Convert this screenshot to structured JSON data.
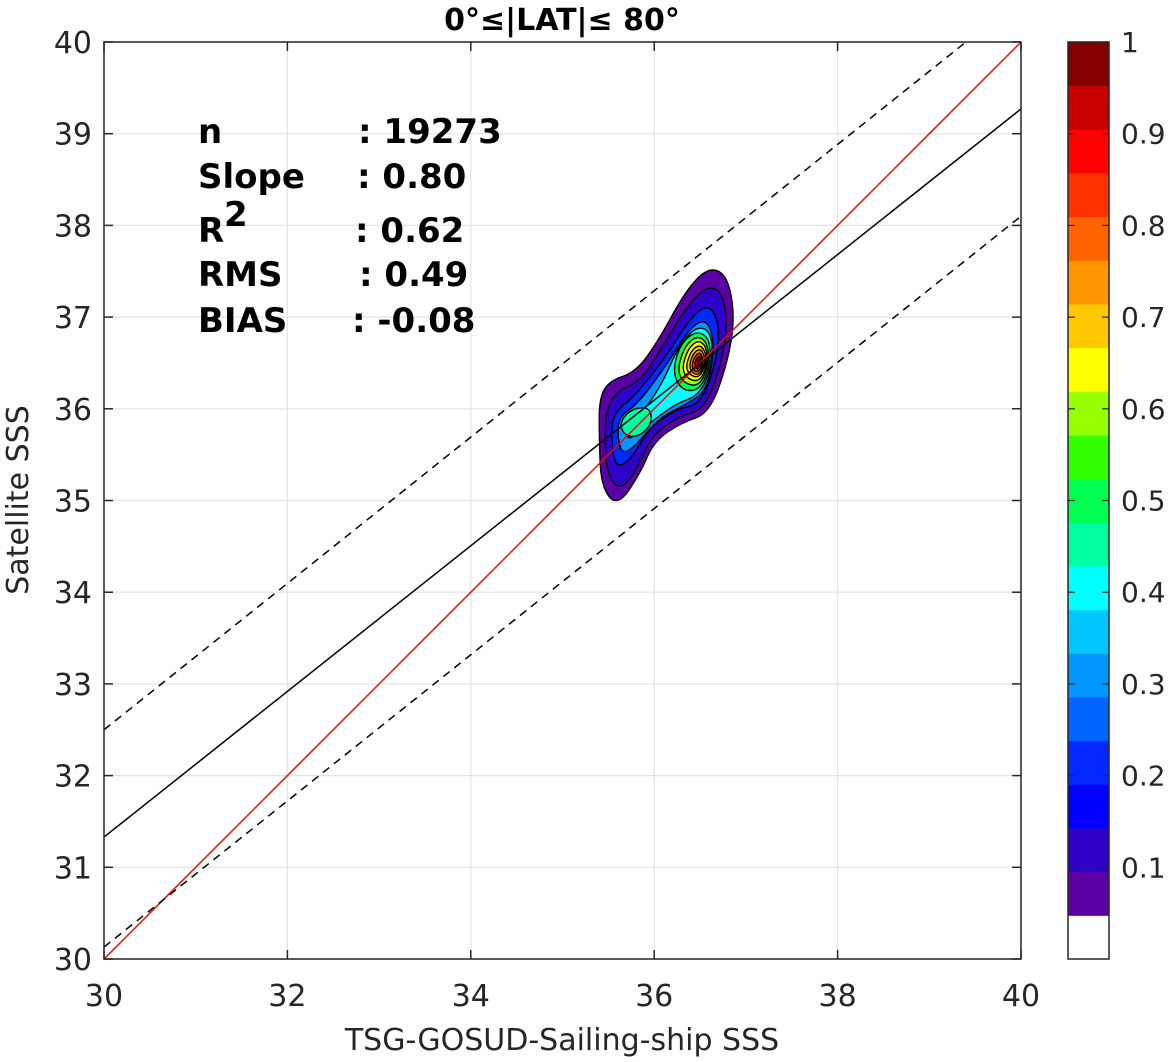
{
  "chart_data": {
    "type": "contour-scatter",
    "title": "0°≤|LAT|≤ 80°",
    "xlabel": "TSG-GOSUD-Sailing-ship SSS",
    "ylabel": "Satellite SSS",
    "xlim": [
      30,
      40
    ],
    "ylim": [
      30,
      40
    ],
    "xticks": [
      "30",
      "32",
      "34",
      "36",
      "38",
      "40"
    ],
    "yticks": [
      "30",
      "31",
      "32",
      "33",
      "34",
      "35",
      "36",
      "37",
      "38",
      "39",
      "40"
    ],
    "grid": true,
    "stats": [
      {
        "name": "n",
        "value": ": 19273"
      },
      {
        "name": "Slope",
        "value": ": 0.80"
      },
      {
        "name": "R",
        "sup": "2",
        "value": ": 0.62"
      },
      {
        "name": "RMS",
        "value": ": 0.49"
      },
      {
        "name": "BIAS",
        "value": ": -0.08"
      }
    ],
    "lines": [
      {
        "name": "one-to-one",
        "color": "#ff0000",
        "style": "solid",
        "x": [
          30,
          40
        ],
        "y": [
          30,
          40
        ]
      },
      {
        "name": "regression",
        "color": "#000000",
        "style": "solid",
        "x": [
          30,
          40
        ],
        "y": [
          31.33,
          39.27
        ]
      },
      {
        "name": "upper-bound",
        "color": "#000000",
        "style": "dashed",
        "x": [
          30,
          39.4
        ],
        "y": [
          32.5,
          40
        ]
      },
      {
        "name": "lower-bound",
        "color": "#000000",
        "style": "dashed",
        "x": [
          30,
          40
        ],
        "y": [
          30.13,
          38.1
        ]
      }
    ],
    "density_peak": {
      "x": 36.5,
      "y": 36.5
    },
    "contour_levels": [
      0.05,
      0.1,
      0.15,
      0.2,
      0.25,
      0.3,
      0.35,
      0.4,
      0.45,
      0.5,
      0.55,
      0.6,
      0.65,
      0.7,
      0.75,
      0.8,
      0.85,
      0.9,
      0.95
    ],
    "colorbar": {
      "range": [
        0,
        1
      ],
      "ticks": [
        "0.1",
        "0.2",
        "0.3",
        "0.4",
        "0.5",
        "0.6",
        "0.7",
        "0.8",
        "0.9",
        "1"
      ],
      "colors": [
        "#ffffff",
        "#5b00a5",
        "#2f00c8",
        "#0000ff",
        "#0028ff",
        "#0064ff",
        "#0096ff",
        "#00c8ff",
        "#00ffff",
        "#00ffa0",
        "#00ff50",
        "#32ff00",
        "#96ff00",
        "#ffff00",
        "#ffc800",
        "#ff9600",
        "#ff6400",
        "#ff3200",
        "#ff0000",
        "#c80000",
        "#870000"
      ]
    }
  }
}
